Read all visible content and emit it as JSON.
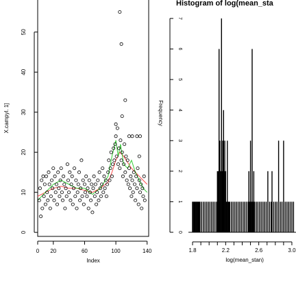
{
  "chart_data": [
    {
      "type": "scatter",
      "title": "",
      "xlabel": "Index",
      "ylabel": "X.campyl. 1]",
      "xlim": [
        0,
        142
      ],
      "ylim": [
        -1,
        58
      ],
      "xticks": [
        "0",
        "20",
        "60",
        "100",
        "140"
      ],
      "xtick_values": [
        0,
        20,
        60,
        100,
        140
      ],
      "yticks": [
        "0",
        "10",
        "20",
        "30",
        "40",
        "50"
      ],
      "ytick_values": [
        0,
        10,
        20,
        30,
        40,
        50
      ],
      "grid": false,
      "points": [
        [
          2,
          8
        ],
        [
          3,
          11
        ],
        [
          5,
          13
        ],
        [
          4,
          4
        ],
        [
          6,
          6
        ],
        [
          7,
          14
        ],
        [
          8,
          9
        ],
        [
          9,
          12
        ],
        [
          10,
          7
        ],
        [
          11,
          14
        ],
        [
          12,
          10
        ],
        [
          13,
          8
        ],
        [
          14,
          15
        ],
        [
          15,
          12
        ],
        [
          16,
          6
        ],
        [
          17,
          9
        ],
        [
          18,
          13
        ],
        [
          19,
          11
        ],
        [
          20,
          16
        ],
        [
          21,
          8
        ],
        [
          22,
          14
        ],
        [
          23,
          10
        ],
        [
          24,
          12
        ],
        [
          25,
          7
        ],
        [
          26,
          15
        ],
        [
          27,
          11
        ],
        [
          28,
          9
        ],
        [
          29,
          13
        ],
        [
          30,
          16
        ],
        [
          31,
          10
        ],
        [
          32,
          8
        ],
        [
          33,
          14
        ],
        [
          34,
          12
        ],
        [
          35,
          6
        ],
        [
          36,
          11
        ],
        [
          37,
          9
        ],
        [
          38,
          17
        ],
        [
          39,
          13
        ],
        [
          40,
          10
        ],
        [
          41,
          15
        ],
        [
          42,
          8
        ],
        [
          43,
          12
        ],
        [
          44,
          14
        ],
        [
          45,
          7
        ],
        [
          46,
          11
        ],
        [
          47,
          16
        ],
        [
          48,
          9
        ],
        [
          49,
          13
        ],
        [
          50,
          6
        ],
        [
          51,
          10
        ],
        [
          52,
          12
        ],
        [
          53,
          15
        ],
        [
          54,
          8
        ],
        [
          55,
          11
        ],
        [
          56,
          18
        ],
        [
          57,
          9
        ],
        [
          58,
          13
        ],
        [
          59,
          7
        ],
        [
          60,
          12
        ],
        [
          61,
          10
        ],
        [
          62,
          14
        ],
        [
          63,
          9
        ],
        [
          64,
          11
        ],
        [
          65,
          6
        ],
        [
          66,
          13
        ],
        [
          67,
          10
        ],
        [
          68,
          8
        ],
        [
          69,
          12
        ],
        [
          70,
          5
        ],
        [
          71,
          11
        ],
        [
          72,
          14
        ],
        [
          73,
          9
        ],
        [
          74,
          12
        ],
        [
          75,
          7
        ],
        [
          76,
          10
        ],
        [
          77,
          13
        ],
        [
          78,
          8
        ],
        [
          79,
          15
        ],
        [
          80,
          11
        ],
        [
          81,
          9
        ],
        [
          82,
          12
        ],
        [
          83,
          16
        ],
        [
          84,
          10
        ],
        [
          85,
          14
        ],
        [
          86,
          11
        ],
        [
          87,
          13
        ],
        [
          88,
          9
        ],
        [
          89,
          12
        ],
        [
          90,
          15
        ],
        [
          91,
          18
        ],
        [
          92,
          13
        ],
        [
          93,
          16
        ],
        [
          94,
          20
        ],
        [
          95,
          14
        ],
        [
          96,
          17
        ],
        [
          97,
          21
        ],
        [
          98,
          18
        ],
        [
          99,
          22
        ],
        [
          100,
          24
        ],
        [
          101,
          19
        ],
        [
          102,
          26
        ],
        [
          103,
          17
        ],
        [
          104,
          21
        ],
        [
          105,
          16
        ],
        [
          106,
          23
        ],
        [
          107,
          18
        ],
        [
          108,
          20
        ],
        [
          109,
          14
        ],
        [
          110,
          17
        ],
        [
          111,
          22
        ],
        [
          112,
          15
        ],
        [
          113,
          19
        ],
        [
          114,
          13
        ],
        [
          115,
          18
        ],
        [
          116,
          12
        ],
        [
          117,
          16
        ],
        [
          118,
          11
        ],
        [
          119,
          14
        ],
        [
          120,
          9
        ],
        [
          121,
          13
        ],
        [
          122,
          10
        ],
        [
          123,
          15
        ],
        [
          124,
          12
        ],
        [
          125,
          8
        ],
        [
          126,
          14
        ],
        [
          127,
          11
        ],
        [
          128,
          16
        ],
        [
          129,
          7
        ],
        [
          130,
          13
        ],
        [
          131,
          10
        ],
        [
          132,
          12
        ],
        [
          133,
          6
        ],
        [
          134,
          11
        ],
        [
          135,
          9
        ],
        [
          136,
          14
        ],
        [
          137,
          8
        ],
        [
          105,
          55
        ],
        [
          107,
          47
        ],
        [
          112,
          33
        ],
        [
          108,
          29
        ],
        [
          100,
          27
        ],
        [
          121,
          24
        ],
        [
          117,
          24
        ],
        [
          127,
          24
        ],
        [
          131,
          24
        ],
        [
          130,
          19
        ]
      ],
      "series": [
        {
          "name": "",
          "color": "#ff4d4d",
          "x": [
            0,
            10,
            20,
            30,
            40,
            50,
            60,
            70,
            80,
            90,
            95,
            100,
            105,
            110,
            115,
            120,
            125,
            130,
            135,
            140
          ],
          "y": [
            9,
            10,
            11,
            11.5,
            11,
            11,
            10.5,
            10,
            11,
            12.5,
            15,
            18,
            20,
            19,
            17.5,
            16,
            15,
            14,
            13,
            12
          ]
        },
        {
          "name": "",
          "color": "#33cc33",
          "x": [
            0,
            10,
            20,
            30,
            40,
            50,
            60,
            70,
            80,
            90,
            95,
            100,
            103,
            106,
            110,
            115,
            120,
            125,
            130,
            135,
            140
          ],
          "y": [
            8,
            10,
            12,
            13,
            12,
            11,
            11,
            9.5,
            11,
            14,
            19,
            23,
            19,
            22,
            17,
            16,
            18,
            15,
            13,
            11,
            10
          ]
        }
      ]
    },
    {
      "type": "bar",
      "title": "Histogram of log(mean_sta",
      "xlabel": "log(mean_stan)",
      "ylabel": "Frequency",
      "xlim": [
        1.75,
        3.05
      ],
      "ylim": [
        0,
        7.2
      ],
      "xticks": [
        "1.8",
        "2.2",
        "2.6",
        "3.0"
      ],
      "xtick_values": [
        1.8,
        2.2,
        2.6,
        3.0
      ],
      "yticks": [
        "0",
        "1",
        "2",
        "3",
        "4",
        "5",
        "6",
        "7"
      ],
      "ytick_values": [
        0,
        1,
        2,
        3,
        4,
        5,
        6,
        7
      ],
      "grid": false,
      "bars": [
        [
          1.8,
          1
        ],
        [
          1.81,
          1
        ],
        [
          1.82,
          1
        ],
        [
          1.83,
          1
        ],
        [
          1.84,
          1
        ],
        [
          1.85,
          1
        ],
        [
          1.86,
          1
        ],
        [
          1.87,
          1
        ],
        [
          1.88,
          1
        ],
        [
          1.89,
          1
        ],
        [
          1.91,
          1
        ],
        [
          1.93,
          1
        ],
        [
          1.95,
          1
        ],
        [
          1.97,
          1
        ],
        [
          1.99,
          1
        ],
        [
          2.01,
          1
        ],
        [
          2.03,
          1
        ],
        [
          2.05,
          1
        ],
        [
          2.07,
          1
        ],
        [
          2.09,
          1
        ],
        [
          2.1,
          2
        ],
        [
          2.11,
          2
        ],
        [
          2.12,
          6
        ],
        [
          2.125,
          1
        ],
        [
          2.13,
          3
        ],
        [
          2.135,
          2
        ],
        [
          2.14,
          2
        ],
        [
          2.15,
          7
        ],
        [
          2.155,
          3
        ],
        [
          2.16,
          2
        ],
        [
          2.165,
          1
        ],
        [
          2.17,
          3
        ],
        [
          2.175,
          4
        ],
        [
          2.18,
          2
        ],
        [
          2.19,
          3
        ],
        [
          2.2,
          2
        ],
        [
          2.21,
          1
        ],
        [
          2.22,
          3
        ],
        [
          2.23,
          1
        ],
        [
          2.24,
          1
        ],
        [
          2.25,
          1
        ],
        [
          2.27,
          1
        ],
        [
          2.29,
          1
        ],
        [
          2.31,
          1
        ],
        [
          2.33,
          1
        ],
        [
          2.35,
          1
        ],
        [
          2.37,
          1
        ],
        [
          2.39,
          1
        ],
        [
          2.41,
          1
        ],
        [
          2.43,
          1
        ],
        [
          2.45,
          1
        ],
        [
          2.47,
          1
        ],
        [
          2.48,
          2
        ],
        [
          2.49,
          1
        ],
        [
          2.5,
          3
        ],
        [
          2.51,
          1
        ],
        [
          2.52,
          6
        ],
        [
          2.53,
          1
        ],
        [
          2.54,
          2
        ],
        [
          2.55,
          1
        ],
        [
          2.57,
          1
        ],
        [
          2.59,
          1
        ],
        [
          2.61,
          1
        ],
        [
          2.63,
          1
        ],
        [
          2.65,
          1
        ],
        [
          2.67,
          1
        ],
        [
          2.69,
          1
        ],
        [
          2.71,
          2
        ],
        [
          2.73,
          1
        ],
        [
          2.75,
          1
        ],
        [
          2.76,
          2
        ],
        [
          2.78,
          1
        ],
        [
          2.8,
          1
        ],
        [
          2.82,
          1
        ],
        [
          2.84,
          3
        ],
        [
          2.86,
          1
        ],
        [
          2.88,
          1
        ],
        [
          2.9,
          3
        ],
        [
          2.92,
          1
        ],
        [
          2.94,
          1
        ],
        [
          2.96,
          1
        ],
        [
          2.98,
          1
        ],
        [
          3.0,
          1
        ],
        [
          3.02,
          1
        ]
      ]
    }
  ]
}
